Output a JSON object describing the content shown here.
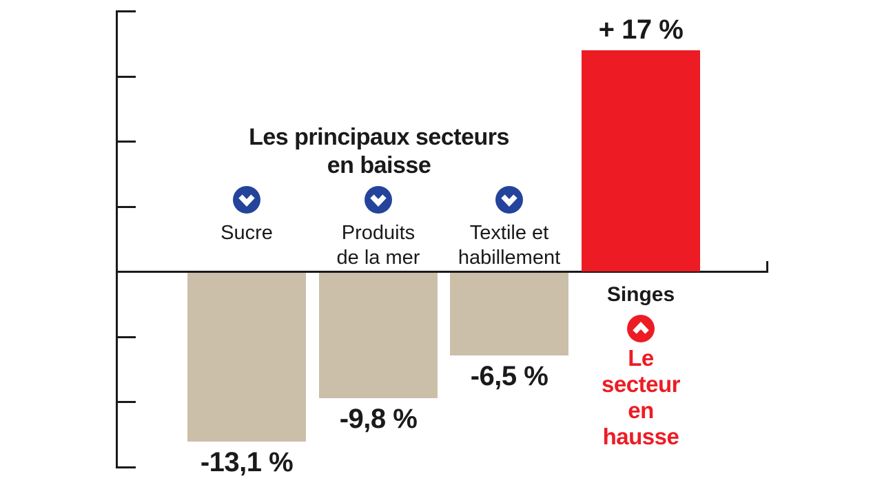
{
  "chart_data": {
    "type": "bar",
    "title": "Les principaux secteurs en baisse",
    "title_lines": [
      "Les principaux secteurs",
      "en baisse"
    ],
    "unit": "%",
    "categories": [
      "Sucre",
      "Produits de la mer",
      "Textile et habillement",
      "Singes"
    ],
    "values": [
      -13.1,
      -9.8,
      -6.5,
      17
    ],
    "bars": [
      {
        "category": "Sucre",
        "category_lines": [
          "Sucre"
        ],
        "value": -13.1,
        "label": "-13,1 %",
        "direction": "down"
      },
      {
        "category": "Produits de la mer",
        "category_lines": [
          "Produits",
          "de la mer"
        ],
        "value": -9.8,
        "label": "-9,8 %",
        "direction": "down"
      },
      {
        "category": "Textile et habillement",
        "category_lines": [
          "Textile et",
          "habillement"
        ],
        "value": -6.5,
        "label": "-6,5 %",
        "direction": "down"
      },
      {
        "category": "Singes",
        "category_lines": [
          "Singes"
        ],
        "value": 17,
        "label": "+ 17 %",
        "direction": "up"
      }
    ],
    "highlight": {
      "name": "Singes",
      "caption": "Le secteur en hausse",
      "caption_lines": [
        "Le",
        "secteur",
        "en",
        "hausse"
      ]
    },
    "axis": {
      "ylim": [
        -15,
        20
      ],
      "tick_step": 5,
      "tick_values": [
        20,
        15,
        10,
        5,
        -5,
        -10,
        -15
      ],
      "baseline_value": 0,
      "grid": false
    },
    "legend": "none",
    "colors": {
      "bar_down": "#CBBFA9",
      "bar_up": "#ED1C24",
      "down_icon": "#24439B",
      "up_icon": "#ED1C24",
      "axis": "#1A1A1A",
      "text": "#1A1A1A",
      "highlight_text": "#ED1C24",
      "background": "#FFFFFF"
    }
  }
}
